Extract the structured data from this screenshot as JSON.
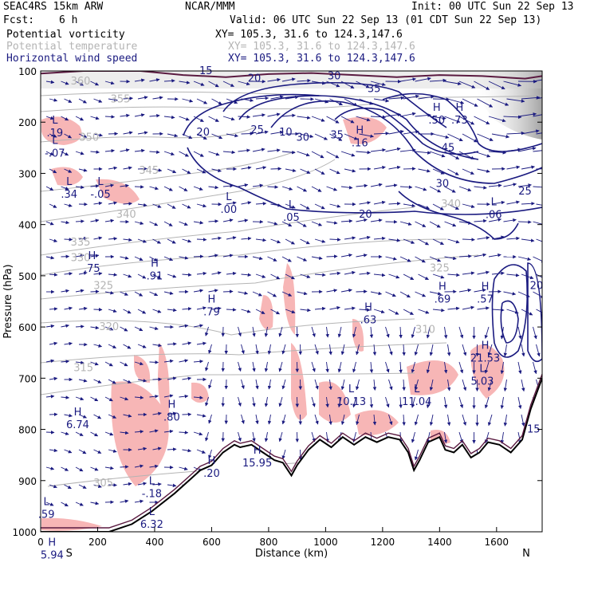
{
  "header": {
    "model": "SEAC4RS 15km ARW",
    "fcst_label": "Fcst:",
    "fcst_value": "6 h",
    "org": "NCAR/MMM",
    "init": "Init: 00 UTC Sun 22 Sep 13",
    "valid": "Valid: 06 UTC Sun 22 Sep 13 (01 CDT Sun 22 Sep 13)"
  },
  "fields": [
    {
      "name": "Potential vorticity",
      "xy": "XY= 105.3, 31.6 to 124.3,147.6",
      "color": "#000000"
    },
    {
      "name": "Potential temperature",
      "xy": "XY= 105.3, 31.6 to 124.3,147.6",
      "color": "#b4b4b4"
    },
    {
      "name": "Horizontal wind speed",
      "xy": "XY= 105.3, 31.6 to 124.3,147.6",
      "color": "#1a1a80"
    }
  ],
  "chart_data": {
    "type": "cross-section",
    "xlabel": "Distance (km)",
    "ylabel": "Pressure (hPa)",
    "xlim": [
      0,
      1760
    ],
    "ylim": [
      1000,
      100
    ],
    "x_ticks": [
      0,
      200,
      400,
      600,
      800,
      1000,
      1200,
      1400,
      1600
    ],
    "y_ticks": [
      100,
      200,
      300,
      400,
      500,
      600,
      700,
      800,
      900,
      1000
    ],
    "x_end_labels": {
      "left": "S",
      "right": "N"
    },
    "colors": {
      "pv_shade": "#f7b6b6",
      "theta": "#b4b4b4",
      "wind": "#1a1a80",
      "terrain": "#000000",
      "pv_upper": "#5a1a40"
    },
    "theta_contours": [
      {
        "label": "305",
        "x": 220,
        "p": 905
      },
      {
        "label": "315",
        "x": 150,
        "p": 680
      },
      {
        "label": "320",
        "x": 240,
        "p": 600
      },
      {
        "label": "325",
        "x": 220,
        "p": 520
      },
      {
        "label": "325",
        "x": 1400,
        "p": 485
      },
      {
        "label": "330",
        "x": 140,
        "p": 465
      },
      {
        "label": "335",
        "x": 140,
        "p": 435
      },
      {
        "label": "340",
        "x": 300,
        "p": 380
      },
      {
        "label": "345",
        "x": 380,
        "p": 295
      },
      {
        "label": "350",
        "x": 170,
        "p": 230
      },
      {
        "label": "355",
        "x": 280,
        "p": 155
      },
      {
        "label": "360",
        "x": 140,
        "p": 120
      },
      {
        "label": "310",
        "x": 1350,
        "p": 605
      },
      {
        "label": "340",
        "x": 1440,
        "p": 360
      }
    ],
    "wind_labels": [
      {
        "label": "15",
        "x": 580,
        "p": 100
      },
      {
        "label": "20",
        "x": 750,
        "p": 115
      },
      {
        "label": "30",
        "x": 1030,
        "p": 110
      },
      {
        "label": "35",
        "x": 1170,
        "p": 135
      },
      {
        "label": "20",
        "x": 570,
        "p": 220
      },
      {
        "label": "25",
        "x": 760,
        "p": 215
      },
      {
        "label": "10",
        "x": 860,
        "p": 220
      },
      {
        "label": "30",
        "x": 920,
        "p": 230
      },
      {
        "label": "35",
        "x": 1040,
        "p": 225
      },
      {
        "label": "45",
        "x": 1430,
        "p": 250
      },
      {
        "label": "30",
        "x": 1410,
        "p": 320
      },
      {
        "label": "20",
        "x": 1140,
        "p": 380
      },
      {
        "label": "25",
        "x": 1700,
        "p": 335
      },
      {
        "label": "20",
        "x": 1740,
        "p": 520
      },
      {
        "label": "15",
        "x": 1730,
        "p": 800
      }
    ],
    "pv_extrema": [
      {
        "type": "L",
        "value": ".19",
        "x": 50,
        "p": 215
      },
      {
        "type": "L",
        "value": "-.07",
        "x": 50,
        "p": 255
      },
      {
        "type": "L",
        "value": ".34",
        "x": 100,
        "p": 335
      },
      {
        "type": "L",
        "value": "-.05",
        "x": 210,
        "p": 335
      },
      {
        "type": "L",
        "value": ".00",
        "x": 660,
        "p": 365
      },
      {
        "type": "L",
        "value": ".05",
        "x": 880,
        "p": 380
      },
      {
        "type": "H",
        "value": ".16",
        "x": 1120,
        "p": 235
      },
      {
        "type": "H",
        "value": ".50",
        "x": 1390,
        "p": 190
      },
      {
        "type": "H",
        "value": ".73",
        "x": 1470,
        "p": 190
      },
      {
        "type": "L",
        "value": ".06",
        "x": 1590,
        "p": 375
      },
      {
        "type": "H",
        "value": ".75",
        "x": 180,
        "p": 480
      },
      {
        "type": "H",
        "value": ".91",
        "x": 400,
        "p": 495
      },
      {
        "type": "H",
        "value": ".79",
        "x": 600,
        "p": 565
      },
      {
        "type": "H",
        "value": ".63",
        "x": 1150,
        "p": 580
      },
      {
        "type": "H",
        "value": ".69",
        "x": 1410,
        "p": 540
      },
      {
        "type": "H",
        "value": ".57",
        "x": 1560,
        "p": 540
      },
      {
        "type": "H",
        "value": "21.53",
        "x": 1560,
        "p": 655
      },
      {
        "type": "L",
        "value": "5.03",
        "x": 1550,
        "p": 700
      },
      {
        "type": "L",
        "value": "10.13",
        "x": 1090,
        "p": 740
      },
      {
        "type": "L",
        "value": "11.04",
        "x": 1320,
        "p": 740
      },
      {
        "type": "H",
        "value": "6.74",
        "x": 130,
        "p": 785
      },
      {
        "type": "H",
        "value": ".80",
        "x": 460,
        "p": 770
      },
      {
        "type": "H",
        "value": ".20",
        "x": 600,
        "p": 880
      },
      {
        "type": "H",
        "value": "15.95",
        "x": 760,
        "p": 860
      },
      {
        "type": "L",
        "value": "-.18",
        "x": 390,
        "p": 920
      },
      {
        "type": "L",
        "value": "6.32",
        "x": 390,
        "p": 980
      },
      {
        "type": "L",
        "value": ".59",
        "x": 20,
        "p": 960
      },
      {
        "type": "H",
        "value": "5.94",
        "x": 40,
        "p": 1040
      }
    ],
    "terrain": [
      [
        0,
        1000
      ],
      [
        240,
        1000
      ],
      [
        320,
        985
      ],
      [
        390,
        960
      ],
      [
        470,
        925
      ],
      [
        530,
        895
      ],
      [
        560,
        880
      ],
      [
        600,
        870
      ],
      [
        640,
        845
      ],
      [
        680,
        830
      ],
      [
        700,
        835
      ],
      [
        740,
        830
      ],
      [
        780,
        845
      ],
      [
        820,
        860
      ],
      [
        850,
        865
      ],
      [
        880,
        890
      ],
      [
        900,
        870
      ],
      [
        940,
        840
      ],
      [
        980,
        820
      ],
      [
        1020,
        835
      ],
      [
        1060,
        815
      ],
      [
        1100,
        830
      ],
      [
        1140,
        815
      ],
      [
        1180,
        825
      ],
      [
        1220,
        815
      ],
      [
        1260,
        820
      ],
      [
        1290,
        845
      ],
      [
        1310,
        880
      ],
      [
        1330,
        860
      ],
      [
        1360,
        825
      ],
      [
        1400,
        815
      ],
      [
        1420,
        840
      ],
      [
        1450,
        845
      ],
      [
        1480,
        830
      ],
      [
        1510,
        855
      ],
      [
        1540,
        845
      ],
      [
        1570,
        825
      ],
      [
        1610,
        830
      ],
      [
        1650,
        845
      ],
      [
        1690,
        820
      ],
      [
        1720,
        760
      ],
      [
        1760,
        700
      ]
    ],
    "pv_upper_contour": [
      [
        0,
        105
      ],
      [
        150,
        100
      ],
      [
        350,
        100
      ],
      [
        500,
        108
      ],
      [
        650,
        112
      ],
      [
        800,
        106
      ],
      [
        950,
        104
      ],
      [
        1100,
        108
      ],
      [
        1250,
        112
      ],
      [
        1400,
        108
      ],
      [
        1550,
        110
      ],
      [
        1700,
        115
      ],
      [
        1760,
        110
      ]
    ]
  }
}
